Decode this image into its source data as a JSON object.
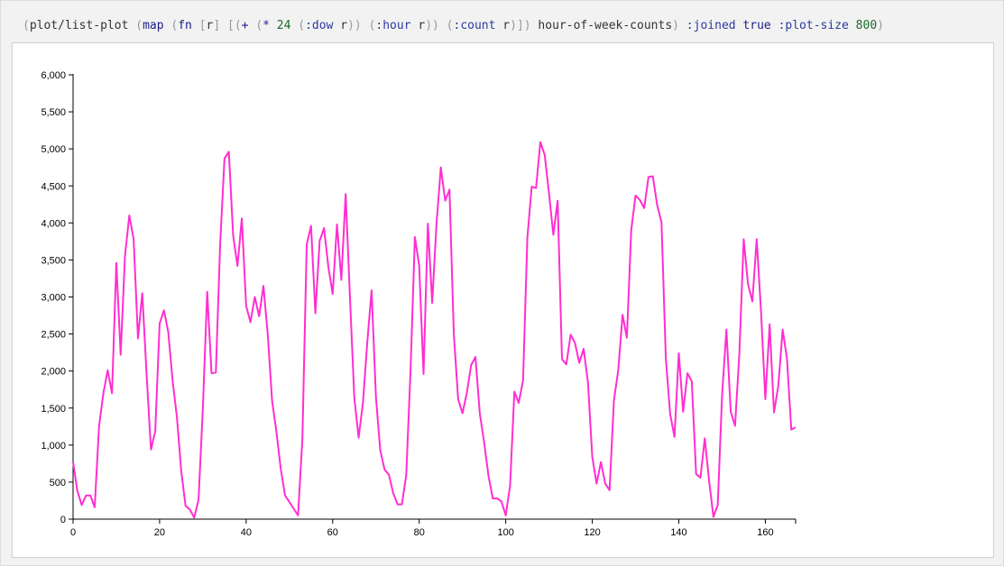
{
  "code": {
    "parts": [
      {
        "t": "(",
        "c": "p"
      },
      {
        "t": "plot/list-plot",
        "c": "fn"
      },
      {
        "t": " ",
        "c": "fn"
      },
      {
        "t": "(",
        "c": "p"
      },
      {
        "t": "map",
        "c": "kw"
      },
      {
        "t": " ",
        "c": "fn"
      },
      {
        "t": "(",
        "c": "p"
      },
      {
        "t": "fn",
        "c": "kw"
      },
      {
        "t": " ",
        "c": "fn"
      },
      {
        "t": "[",
        "c": "p"
      },
      {
        "t": "r",
        "c": "fn"
      },
      {
        "t": "]",
        "c": "p"
      },
      {
        "t": " ",
        "c": "fn"
      },
      {
        "t": "[(",
        "c": "p"
      },
      {
        "t": "+",
        "c": "kw"
      },
      {
        "t": " ",
        "c": "fn"
      },
      {
        "t": "(",
        "c": "p"
      },
      {
        "t": "*",
        "c": "kw"
      },
      {
        "t": " 24 ",
        "c": "num"
      },
      {
        "t": "(",
        "c": "p"
      },
      {
        "t": ":dow",
        "c": "sym"
      },
      {
        "t": " r",
        "c": "fn"
      },
      {
        "t": "))",
        "c": "p"
      },
      {
        "t": " ",
        "c": "fn"
      },
      {
        "t": "(",
        "c": "p"
      },
      {
        "t": ":hour",
        "c": "sym"
      },
      {
        "t": " r",
        "c": "fn"
      },
      {
        "t": "))",
        "c": "p"
      },
      {
        "t": " ",
        "c": "fn"
      },
      {
        "t": "(",
        "c": "p"
      },
      {
        "t": ":count",
        "c": "sym"
      },
      {
        "t": " r",
        "c": "fn"
      },
      {
        "t": ")])",
        "c": "p"
      },
      {
        "t": " hour-of-week-counts",
        "c": "fn"
      },
      {
        "t": ")",
        "c": "p"
      },
      {
        "t": " :joined",
        "c": "sym"
      },
      {
        "t": " true",
        "c": "kw"
      },
      {
        "t": " :plot-size",
        "c": "sym"
      },
      {
        "t": " 800",
        "c": "num"
      },
      {
        "t": ")",
        "c": "p"
      }
    ]
  },
  "chart_data": {
    "type": "line",
    "title": "",
    "xlabel": "",
    "ylabel": "",
    "xlim": [
      0,
      167
    ],
    "ylim": [
      0,
      6000
    ],
    "x_ticks": [
      0,
      20,
      40,
      60,
      80,
      100,
      120,
      140,
      160
    ],
    "y_ticks": [
      0,
      500,
      1000,
      1500,
      2000,
      2500,
      3000,
      3500,
      4000,
      4500,
      5000,
      5500,
      6000
    ],
    "x_tick_labels": [
      "0",
      "20",
      "40",
      "60",
      "80",
      "100",
      "120",
      "140",
      "160"
    ],
    "y_tick_labels": [
      "0",
      "500",
      "1,000",
      "1,500",
      "2,000",
      "2,500",
      "3,000",
      "3,500",
      "4,000",
      "4,500",
      "5,000",
      "5,500",
      "6,000"
    ],
    "grid": false,
    "line_color": "#ff2ed1",
    "series": [
      {
        "values": [
          770,
          380,
          190,
          320,
          320,
          160,
          1250,
          1700,
          2010,
          1700,
          3460,
          2220,
          3560,
          4100,
          3780,
          2440,
          3050,
          1950,
          940,
          1190,
          2640,
          2820,
          2530,
          1870,
          1380,
          650,
          180,
          130,
          20,
          260,
          1500,
          3070,
          1970,
          1980,
          3720,
          4870,
          4960,
          3830,
          3420,
          4060,
          2880,
          2660,
          3000,
          2740,
          3150,
          2490,
          1600,
          1180,
          680,
          320,
          230,
          140,
          50,
          1080,
          3710,
          3960,
          2780,
          3760,
          3930,
          3410,
          3040,
          3980,
          3230,
          4390,
          2990,
          1640,
          1100,
          1570,
          2390,
          3090,
          1650,
          930,
          670,
          600,
          350,
          200,
          200,
          590,
          2010,
          3810,
          3420,
          1960,
          3990,
          2920,
          3990,
          4750,
          4300,
          4450,
          2500,
          1620,
          1430,
          1700,
          2080,
          2190,
          1430,
          1040,
          590,
          280,
          280,
          240,
          50,
          450,
          1720,
          1570,
          1870,
          3800,
          4490,
          4470,
          5090,
          4920,
          4400,
          3840,
          4300,
          2160,
          2090,
          2490,
          2380,
          2110,
          2300,
          1850,
          840,
          480,
          770,
          480,
          390,
          1600,
          2010,
          2760,
          2450,
          3900,
          4370,
          4310,
          4200,
          4620,
          4630,
          4240,
          4010,
          2170,
          1420,
          1110,
          2240,
          1450,
          1970,
          1860,
          610,
          560,
          1090,
          520,
          30,
          190,
          1670,
          2560,
          1450,
          1260,
          2240,
          3780,
          3170,
          2940,
          3780,
          2810,
          1620,
          2630,
          1440,
          1800,
          2560,
          2170,
          1210,
          1240
        ]
      }
    ]
  }
}
